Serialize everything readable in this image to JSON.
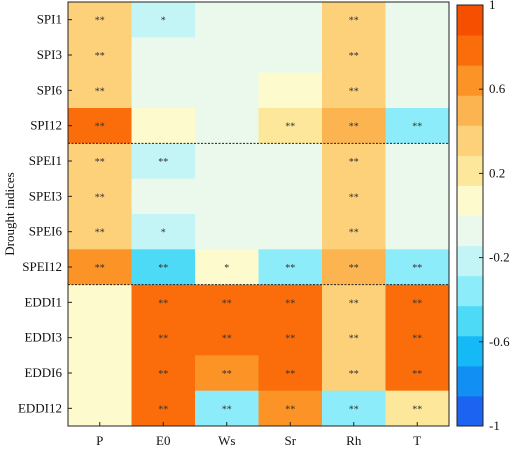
{
  "chart_data": {
    "type": "heatmap",
    "ylabel": "Drought indices",
    "rows": [
      "SPI1",
      "SPI3",
      "SPI6",
      "SPI12",
      "SPEI1",
      "SPEI3",
      "SPEI6",
      "SPEI12",
      "EDDI1",
      "EDDI3",
      "EDDI6",
      "EDDI12"
    ],
    "columns": [
      "P",
      "E0",
      "Ws",
      "Sr",
      "Rh",
      "T"
    ],
    "values": [
      [
        0.35,
        -0.22,
        -0.12,
        -0.12,
        0.4,
        -0.12
      ],
      [
        0.35,
        -0.05,
        -0.05,
        -0.05,
        0.35,
        -0.05
      ],
      [
        0.35,
        -0.05,
        -0.05,
        0.05,
        0.35,
        -0.05
      ],
      [
        0.85,
        0.1,
        -0.05,
        0.15,
        0.45,
        -0.3
      ],
      [
        0.35,
        -0.28,
        -0.1,
        -0.1,
        0.35,
        -0.1
      ],
      [
        0.35,
        -0.1,
        -0.05,
        -0.1,
        0.35,
        -0.1
      ],
      [
        0.35,
        -0.2,
        -0.05,
        -0.1,
        0.35,
        -0.1
      ],
      [
        0.65,
        -0.5,
        0.1,
        -0.35,
        0.5,
        -0.3
      ],
      [
        0.0,
        0.85,
        0.8,
        0.8,
        0.3,
        0.75
      ],
      [
        0.0,
        0.85,
        0.8,
        0.8,
        0.3,
        0.75
      ],
      [
        0.0,
        0.85,
        0.7,
        0.8,
        0.3,
        0.75
      ],
      [
        0.0,
        0.85,
        -0.4,
        0.6,
        -0.3,
        0.2
      ]
    ],
    "annotations": [
      [
        "**",
        "*",
        "",
        "",
        "**",
        ""
      ],
      [
        "**",
        "",
        "",
        "",
        "**",
        ""
      ],
      [
        "**",
        "",
        "",
        "",
        "**",
        ""
      ],
      [
        "**",
        "",
        "",
        "**",
        "**",
        "**"
      ],
      [
        "**",
        "**",
        "",
        "",
        "**",
        ""
      ],
      [
        "**",
        "",
        "",
        "",
        "**",
        ""
      ],
      [
        "**",
        "*",
        "",
        "",
        "**",
        ""
      ],
      [
        "**",
        "**",
        "*",
        "**",
        "**",
        "**"
      ],
      [
        "",
        "**",
        "**",
        "**",
        "**",
        "**"
      ],
      [
        "",
        "**",
        "**",
        "**",
        "**",
        "**"
      ],
      [
        "",
        "**",
        "**",
        "**",
        "**",
        "**"
      ],
      [
        "",
        "**",
        "**",
        "**",
        "**",
        "**"
      ]
    ],
    "colorbar": {
      "range": [
        -1,
        1
      ],
      "ticks": [
        "1",
        "0.6",
        "0.2",
        "-0.2",
        "-0.6",
        "-1"
      ],
      "tick_values": [
        1,
        0.6,
        0.2,
        -0.2,
        -0.6,
        -1
      ],
      "colors": [
        "#1b63f0",
        "#128ff2",
        "#14b9f5",
        "#4ddaf7",
        "#8cecf9",
        "#c4f5f6",
        "#eaf9ec",
        "#fdfacd",
        "#fde79a",
        "#fdd07a",
        "#fcb450",
        "#fb9326",
        "#fa6d0a",
        "#f74f00"
      ]
    },
    "group_separators_after_rows": [
      "SPI12",
      "SPEI12"
    ],
    "grid": false
  }
}
